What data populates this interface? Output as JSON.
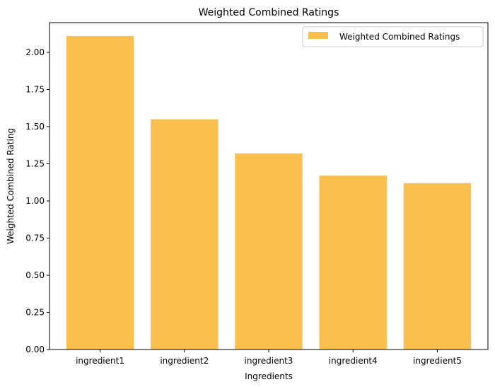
{
  "chart_data": {
    "type": "bar",
    "title": "Weighted Combined Ratings",
    "xlabel": "Ingredients",
    "ylabel": "Weighted Combined Rating",
    "categories": [
      "ingredient1",
      "ingredient2",
      "ingredient3",
      "ingredient4",
      "ingredient5"
    ],
    "series": [
      {
        "name": "Weighted Combined Ratings",
        "values": [
          2.11,
          1.55,
          1.32,
          1.17,
          1.12
        ],
        "color": "#fbbf4d"
      }
    ],
    "ylim": [
      0,
      2.2
    ],
    "yticks": [
      "0.00",
      "0.25",
      "0.50",
      "0.75",
      "1.00",
      "1.25",
      "1.50",
      "1.75",
      "2.00"
    ],
    "grid": false,
    "legend_position": "top-right"
  }
}
